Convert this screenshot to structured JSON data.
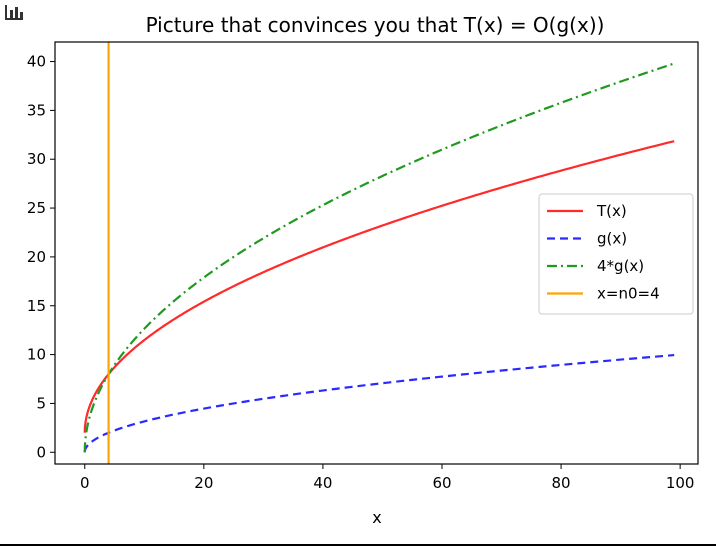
{
  "toolbar": {
    "icon": "bar-chart-icon"
  },
  "chart_data": {
    "type": "line",
    "title": "Picture that convinces you that T(x) = O(g(x))",
    "xlabel": "x",
    "ylabel": "",
    "xlim": [
      -5,
      103
    ],
    "ylim": [
      -1.2,
      42
    ],
    "xticks": [
      0,
      20,
      40,
      60,
      80,
      100
    ],
    "yticks": [
      0,
      5,
      10,
      15,
      20,
      25,
      30,
      35,
      40
    ],
    "grid": false,
    "legend_position": "center-right",
    "series": [
      {
        "name": "T(x)",
        "formula": "3*sqrt(x)+2",
        "x_range": [
          0,
          99
        ],
        "color": "#ff2a2a",
        "dash": "solid"
      },
      {
        "name": "g(x)",
        "formula": "sqrt(x)",
        "x_range": [
          0,
          99
        ],
        "color": "#2a2aff",
        "dash": "dashed"
      },
      {
        "name": "4*g(x)",
        "formula": "4*sqrt(x)",
        "x_range": [
          0,
          99
        ],
        "color": "#1f9a1f",
        "dash": "dashdot"
      },
      {
        "name": "x=n0=4",
        "vertical_x": 4,
        "color": "#ffa500",
        "dash": "solid"
      }
    ]
  }
}
